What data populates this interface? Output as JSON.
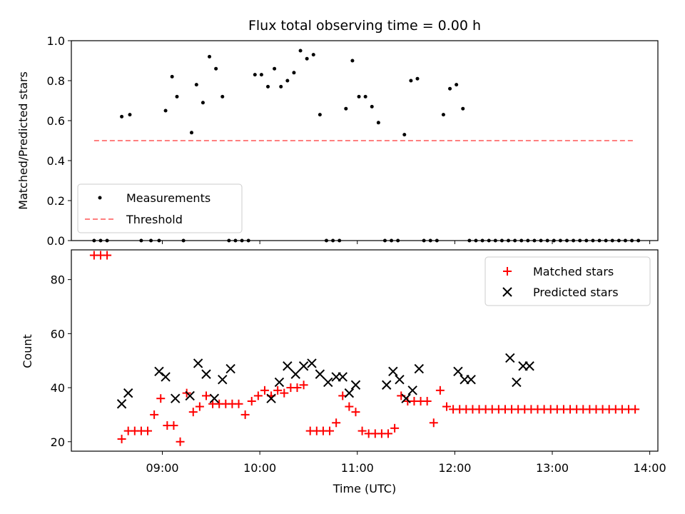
{
  "chart_data": [
    {
      "type": "scatter",
      "title": "Flux total observing time = 0.00 h",
      "xlabel": "",
      "ylabel": "Matched/Predicted stars",
      "ylim": [
        0,
        1.0
      ],
      "yticks": [
        "0.0",
        "0.2",
        "0.4",
        "0.6",
        "0.8",
        "1.0"
      ],
      "xlim": [
        "08:04",
        "14:05"
      ],
      "legend": {
        "placement": "lower-left",
        "entries": [
          "Measurements",
          "Threshold"
        ]
      },
      "series": [
        {
          "name": "Measurements",
          "kind": "points",
          "color": "#000000",
          "x": [
            "08:18",
            "08:22",
            "08:26",
            "08:35",
            "08:40",
            "08:47",
            "08:53",
            "08:58",
            "09:02",
            "09:06",
            "09:09",
            "09:13",
            "09:18",
            "09:21",
            "09:25",
            "09:29",
            "09:33",
            "09:37",
            "09:41",
            "09:45",
            "09:49",
            "09:53",
            "09:57",
            "10:01",
            "10:05",
            "10:09",
            "10:13",
            "10:17",
            "10:21",
            "10:25",
            "10:29",
            "10:33",
            "10:37",
            "10:41",
            "10:45",
            "10:49",
            "10:53",
            "10:57",
            "11:01",
            "11:05",
            "11:09",
            "11:13",
            "11:17",
            "11:21",
            "11:25",
            "11:29",
            "11:33",
            "11:37",
            "11:41",
            "11:45",
            "11:49",
            "11:53",
            "11:57",
            "12:01",
            "12:05",
            "12:09",
            "12:13",
            "12:17",
            "12:21",
            "12:25",
            "12:29",
            "12:33",
            "12:37",
            "12:41",
            "12:45",
            "12:49",
            "12:53",
            "12:57",
            "13:01",
            "13:05",
            "13:09",
            "13:13",
            "13:17",
            "13:21",
            "13:25",
            "13:29",
            "13:33",
            "13:37",
            "13:41",
            "13:45",
            "13:49",
            "13:53"
          ],
          "y": [
            0,
            0,
            0,
            0.62,
            0.63,
            0,
            0,
            0,
            0.65,
            0.82,
            0.72,
            0,
            0.54,
            0.78,
            0.69,
            0.92,
            0.86,
            0.72,
            0,
            0,
            0,
            0,
            0.83,
            0.83,
            0.77,
            0.86,
            0.77,
            0.8,
            0.84,
            0.95,
            0.91,
            0.93,
            0.63,
            0,
            0,
            0,
            0.66,
            0.9,
            0.72,
            0.72,
            0.67,
            0.59,
            0,
            0,
            0,
            0.53,
            0.8,
            0.81,
            0,
            0,
            0,
            0.63,
            0.76,
            0.78,
            0.66,
            0,
            0,
            0,
            0,
            0,
            0,
            0,
            0,
            0,
            0,
            0,
            0,
            0,
            0,
            0,
            0,
            0,
            0,
            0,
            0,
            0,
            0,
            0,
            0,
            0,
            0,
            0
          ]
        },
        {
          "name": "Threshold",
          "kind": "dashed-line",
          "color": "#ff7f7f",
          "x": [
            "08:18",
            "13:50"
          ],
          "y": [
            0.5,
            0.5
          ]
        }
      ]
    },
    {
      "type": "scatter",
      "title": "",
      "xlabel": "Time (UTC)",
      "ylabel": "Count",
      "ylim": [
        16.5,
        91
      ],
      "yticks": [
        "20",
        "40",
        "60",
        "80"
      ],
      "xticks": [
        "09:00",
        "10:00",
        "11:00",
        "12:00",
        "13:00",
        "14:00"
      ],
      "xlim": [
        "08:04",
        "14:05"
      ],
      "legend": {
        "placement": "upper-right",
        "entries": [
          "Matched stars",
          "Predicted stars"
        ]
      },
      "series": [
        {
          "name": "Matched stars",
          "marker": "plus",
          "color": "#ff0000",
          "x": [
            "08:18",
            "08:22",
            "08:26",
            "08:35",
            "08:39",
            "08:43",
            "08:47",
            "08:51",
            "08:55",
            "08:59",
            "09:03",
            "09:07",
            "09:11",
            "09:15",
            "09:19",
            "09:23",
            "09:27",
            "09:31",
            "09:35",
            "09:39",
            "09:43",
            "09:47",
            "09:51",
            "09:55",
            "09:59",
            "10:03",
            "10:07",
            "10:11",
            "10:15",
            "10:19",
            "10:23",
            "10:27",
            "10:31",
            "10:35",
            "10:39",
            "10:43",
            "10:47",
            "10:51",
            "10:55",
            "10:59",
            "11:03",
            "11:07",
            "11:11",
            "11:15",
            "11:19",
            "11:23",
            "11:27",
            "11:31",
            "11:35",
            "11:39",
            "11:43",
            "11:47",
            "11:51",
            "11:55",
            "11:59",
            "12:03",
            "12:07",
            "12:11",
            "12:15",
            "12:19",
            "12:23",
            "12:27",
            "12:31",
            "12:35",
            "12:39",
            "12:43",
            "12:47",
            "12:51",
            "12:55",
            "12:59",
            "13:03",
            "13:07",
            "13:11",
            "13:15",
            "13:19",
            "13:23",
            "13:27",
            "13:31",
            "13:35",
            "13:39",
            "13:43",
            "13:47",
            "13:51"
          ],
          "y": [
            89,
            89,
            89,
            21,
            24,
            24,
            24,
            24,
            30,
            36,
            26,
            26,
            20,
            38,
            31,
            33,
            37,
            34,
            34,
            34,
            34,
            34,
            30,
            35,
            37,
            39,
            37,
            39,
            38,
            40,
            40,
            41,
            24,
            24,
            24,
            24,
            27,
            37,
            33,
            31,
            24,
            23,
            23,
            23,
            23,
            25,
            37,
            35,
            35,
            35,
            35,
            27,
            39,
            33,
            32,
            32,
            32,
            32,
            32,
            32,
            32,
            32,
            32,
            32,
            32,
            32,
            32,
            32,
            32,
            32,
            32,
            32,
            32,
            32,
            32,
            32,
            32,
            32,
            32,
            32,
            32,
            32,
            32
          ]
        },
        {
          "name": "Predicted stars",
          "marker": "x",
          "color": "#000000",
          "x": [
            "08:35",
            "08:39",
            "08:58",
            "09:02",
            "09:08",
            "09:17",
            "09:22",
            "09:27",
            "09:32",
            "09:37",
            "09:42",
            "10:07",
            "10:12",
            "10:17",
            "10:22",
            "10:27",
            "10:32",
            "10:37",
            "10:42",
            "10:47",
            "10:51",
            "10:55",
            "10:59",
            "11:18",
            "11:22",
            "11:26",
            "11:30",
            "11:34",
            "11:38",
            "12:02",
            "12:06",
            "12:10",
            "12:34",
            "12:38",
            "12:42",
            "12:46"
          ],
          "y": [
            34,
            38,
            46,
            44,
            36,
            37,
            49,
            45,
            36,
            43,
            47,
            36,
            42,
            48,
            45,
            48,
            49,
            45,
            42,
            44,
            44,
            38,
            41,
            41,
            46,
            43,
            36,
            39,
            47,
            46,
            43,
            43,
            51,
            42,
            48,
            48
          ]
        }
      ]
    }
  ]
}
